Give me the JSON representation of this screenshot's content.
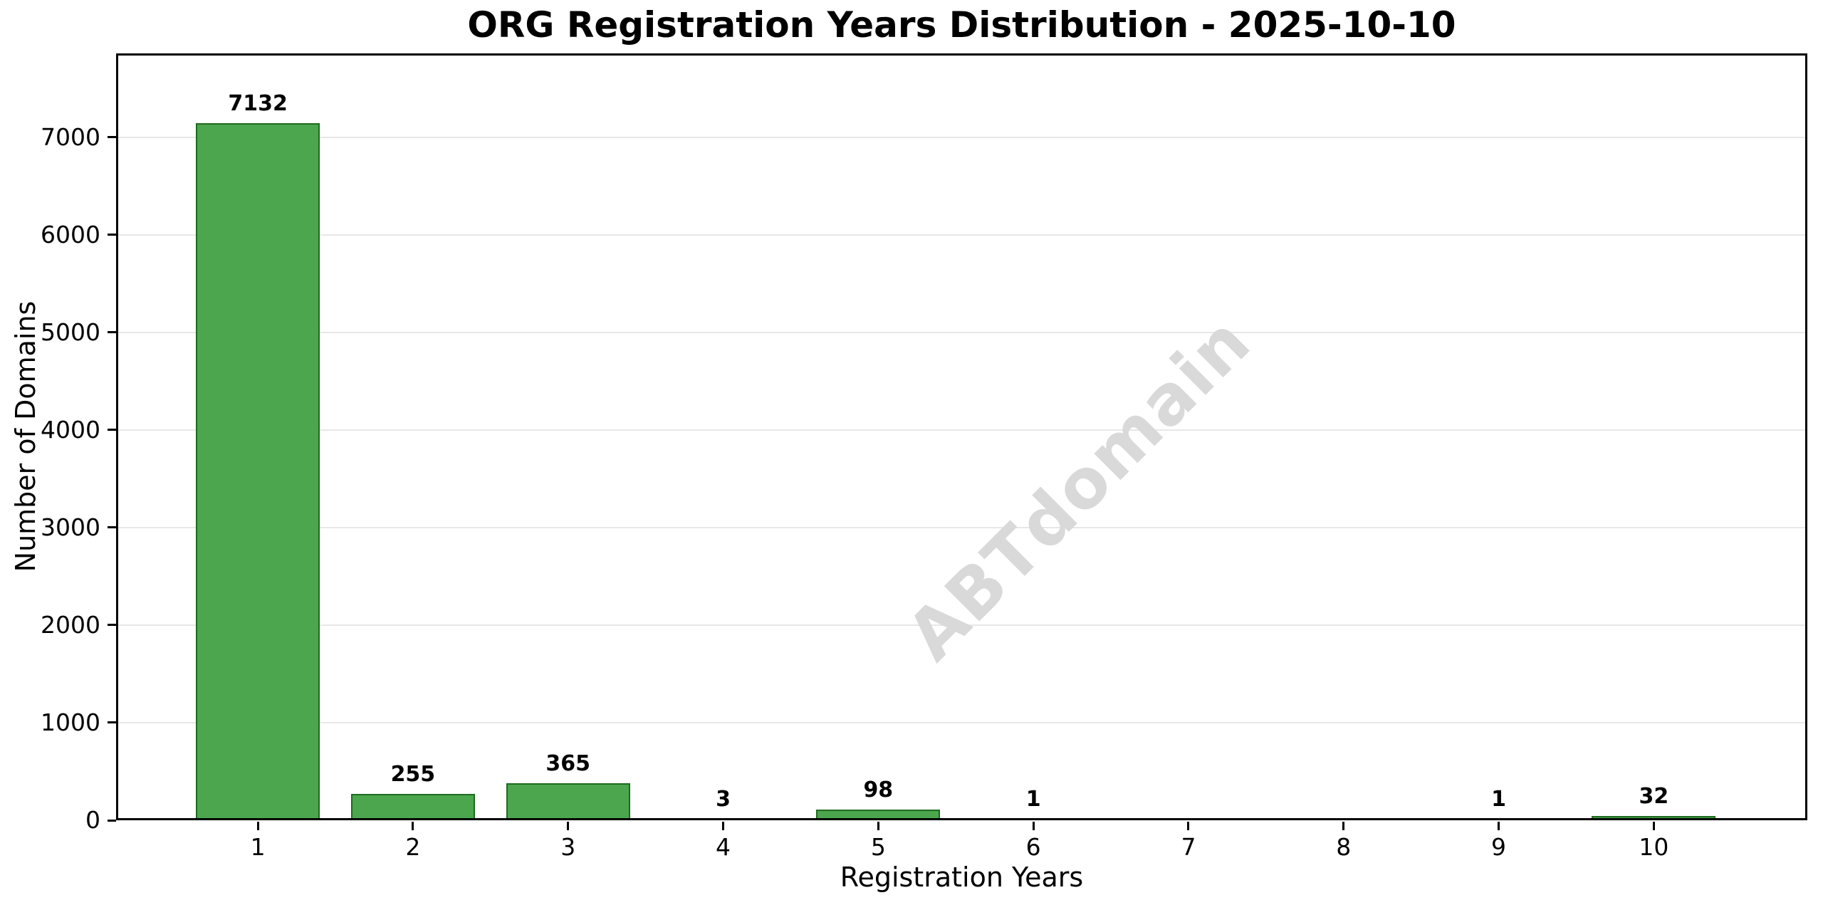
{
  "chart_data": {
    "type": "bar",
    "title": "ORG Registration Years Distribution - 2025-10-10",
    "xlabel": "Registration Years",
    "ylabel": "Number of Domains",
    "categories": [
      "1",
      "2",
      "3",
      "4",
      "5",
      "6",
      "7",
      "8",
      "9",
      "10"
    ],
    "values": [
      7132,
      255,
      365,
      3,
      98,
      1,
      0,
      0,
      1,
      32
    ],
    "bar_labels": [
      "7132",
      "255",
      "365",
      "3",
      "98",
      "1",
      "",
      "",
      "1",
      "32"
    ],
    "yticks": [
      0,
      1000,
      2000,
      3000,
      4000,
      5000,
      6000,
      7000
    ],
    "ylim": [
      0,
      7860
    ],
    "xlim": [
      0.086,
      10.99
    ],
    "bar_width_units": 0.8,
    "grid": "horizontal-only",
    "legend": "none",
    "watermark": "ABTdomain",
    "colors": {
      "bar_fill": "#4BA64E",
      "bar_edge": "#1E6B1E",
      "grid_line": "#E7E7E7",
      "watermark": "#D9D9D9",
      "text": "#000000",
      "background": "#FFFFFF"
    }
  }
}
